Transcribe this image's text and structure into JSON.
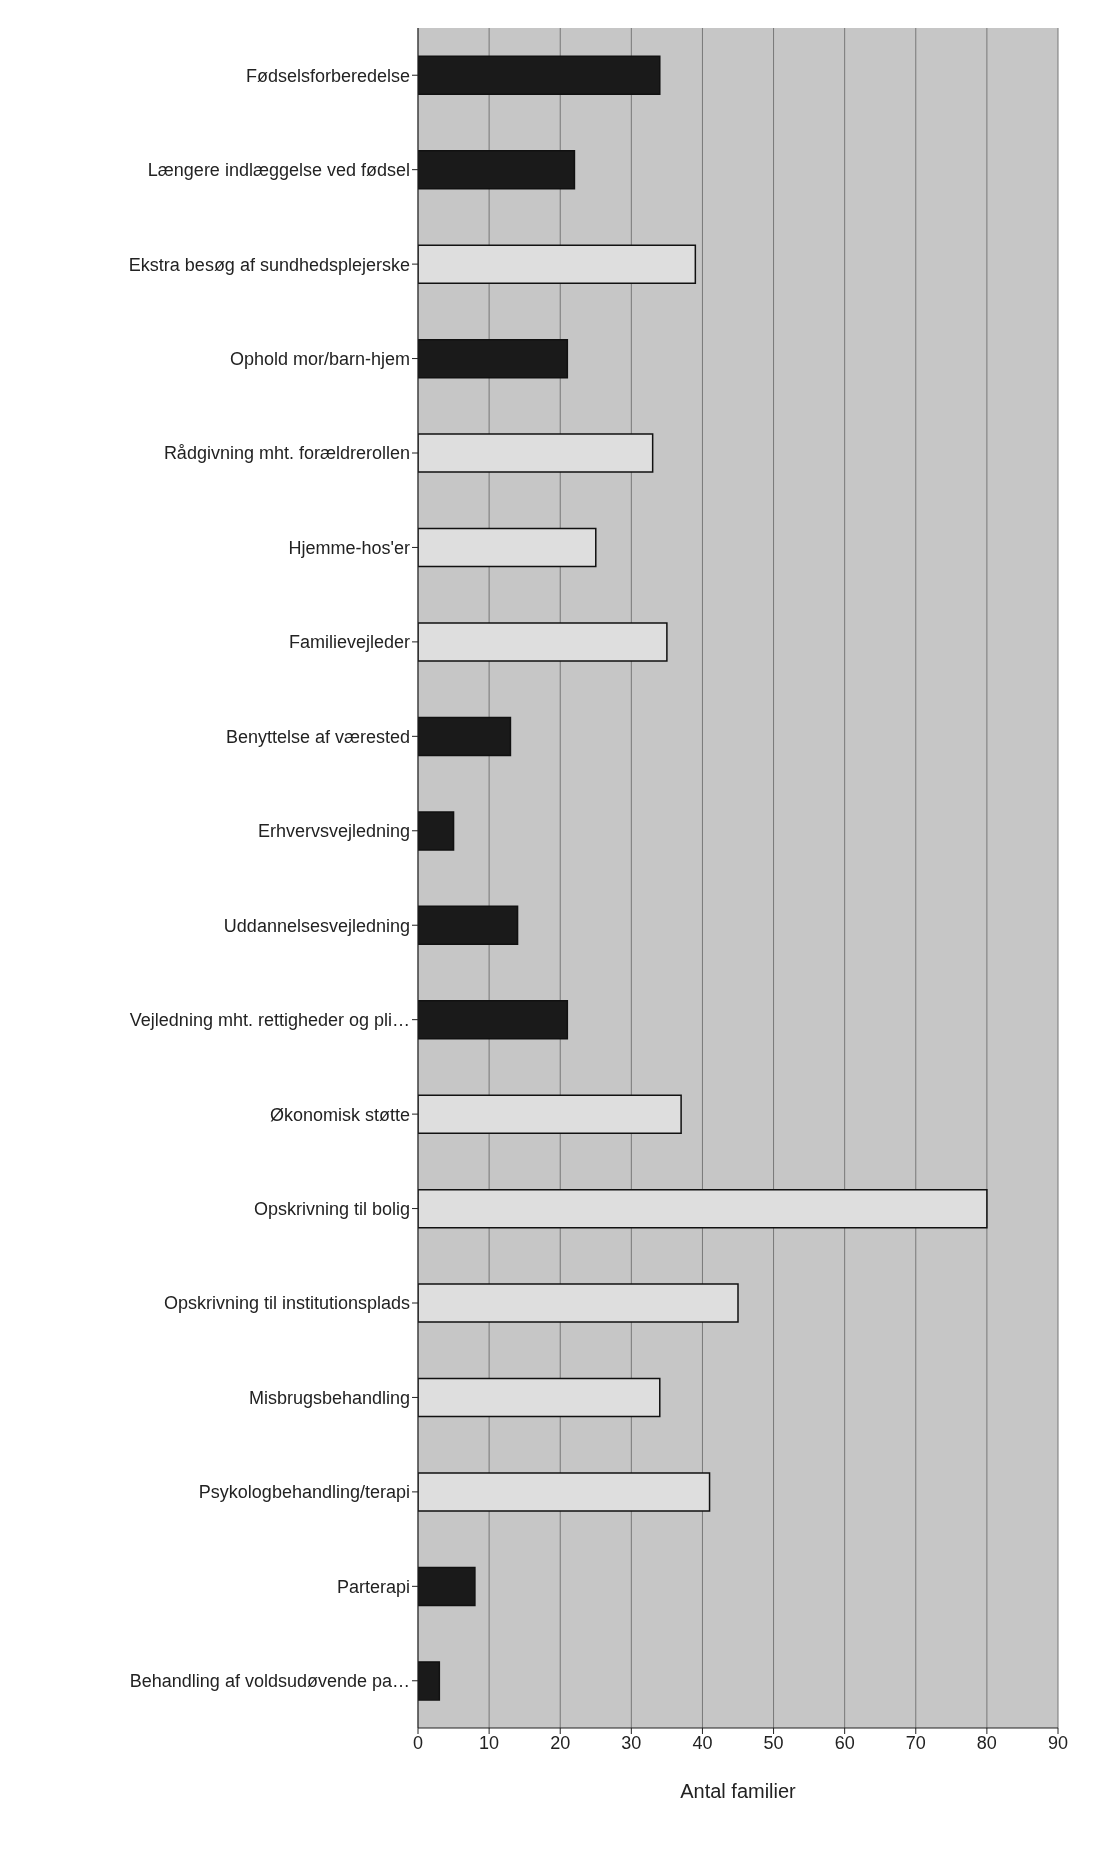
{
  "chart_data": {
    "type": "bar",
    "orientation": "horizontal",
    "xlabel": "Antal familier",
    "categories": [
      "Fødselsforberedelse",
      "Længere indlæggelse ved fødsel",
      "Ekstra besøg af sundhedsplejerske",
      "Ophold mor/barn-hjem",
      "Rådgivning mht. forældrerollen",
      "Hjemme-hos'er",
      "Familievejleder",
      "Benyttelse af værested",
      "Erhvervsvejledning",
      "Uddannelsesvejledning",
      "Vejledning mht. rettigheder og pli…",
      "Økonomisk støtte",
      "Opskrivning til bolig",
      "Opskrivning til institutionsplads",
      "Misbrugsbehandling",
      "Psykologbehandling/terapi",
      "Parterapi",
      "Behandling af voldsudøvende pa…"
    ],
    "values": [
      34,
      22,
      39,
      21,
      33,
      25,
      35,
      13,
      5,
      14,
      21,
      37,
      80,
      45,
      34,
      41,
      8,
      3
    ],
    "colors": [
      "#1a1a1a",
      "#1a1a1a",
      "#dedede",
      "#1a1a1a",
      "#dedede",
      "#dedede",
      "#dedede",
      "#1a1a1a",
      "#1a1a1a",
      "#1a1a1a",
      "#1a1a1a",
      "#dedede",
      "#dedede",
      "#dedede",
      "#dedede",
      "#dedede",
      "#1a1a1a",
      "#1a1a1a"
    ],
    "xlim": [
      0,
      90
    ],
    "xticks": [
      0,
      10,
      20,
      30,
      40,
      50,
      60,
      70,
      80,
      90
    ],
    "grid": "x",
    "legend": false
  }
}
